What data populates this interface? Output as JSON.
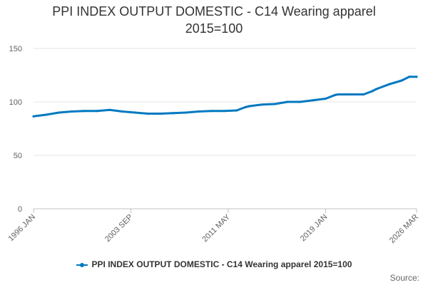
{
  "chart_data": {
    "type": "line",
    "title_line1": "PPI INDEX OUTPUT DOMESTIC - C14 Wearing apparel",
    "title_line2": "2015=100",
    "xlabel": "",
    "ylabel": "",
    "ylim": [
      0,
      150
    ],
    "yticks": [
      0,
      50,
      100,
      150
    ],
    "xlim": [
      "1996 JAN",
      "2026 MAR"
    ],
    "xticks": [
      "1996 JAN",
      "2003 SEP",
      "2011 MAY",
      "2019 JAN",
      "2026 MAR"
    ],
    "grid": true,
    "legend_position": "bottom",
    "color": "#0079c1",
    "series": [
      {
        "name": "PPI INDEX OUTPUT DOMESTIC - C14 Wearing apparel 2015=100",
        "points": [
          [
            "1996 JAN",
            86.5
          ],
          [
            "1997 JAN",
            88.0
          ],
          [
            "1998 JAN",
            90.0
          ],
          [
            "1999 JAN",
            91.0
          ],
          [
            "2000 JAN",
            91.5
          ],
          [
            "2001 JAN",
            91.5
          ],
          [
            "2002 JAN",
            92.5
          ],
          [
            "2003 JAN",
            91.0
          ],
          [
            "2004 JAN",
            90.0
          ],
          [
            "2005 JAN",
            89.0
          ],
          [
            "2006 JAN",
            89.0
          ],
          [
            "2007 JAN",
            89.5
          ],
          [
            "2008 JAN",
            90.0
          ],
          [
            "2009 JAN",
            91.0
          ],
          [
            "2010 JAN",
            91.5
          ],
          [
            "2011 JAN",
            91.5
          ],
          [
            "2012 JAN",
            92.0
          ],
          [
            "2012 SEP",
            95.0
          ],
          [
            "2013 JAN",
            96.0
          ],
          [
            "2014 JAN",
            97.5
          ],
          [
            "2015 JAN",
            98.0
          ],
          [
            "2016 JAN",
            100.0
          ],
          [
            "2017 JAN",
            100.0
          ],
          [
            "2018 JAN",
            101.5
          ],
          [
            "2019 JAN",
            103.0
          ],
          [
            "2019 OCT",
            106.5
          ],
          [
            "2020 JAN",
            107.0
          ],
          [
            "2021 JAN",
            107.0
          ],
          [
            "2022 JAN",
            107.0
          ],
          [
            "2022 SEP",
            110.0
          ],
          [
            "2023 JAN",
            112.0
          ],
          [
            "2024 JAN",
            116.5
          ],
          [
            "2025 JAN",
            120.0
          ],
          [
            "2025 AUG",
            123.5
          ],
          [
            "2026 MAR",
            123.5
          ]
        ]
      }
    ]
  },
  "source_label": "Source:"
}
